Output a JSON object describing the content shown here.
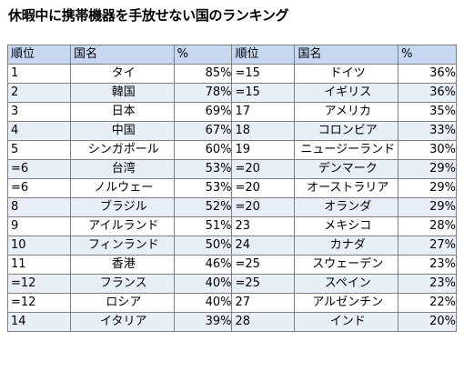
{
  "title": "休暇中に携帯機器を手放せない国のランキング",
  "headers": {
    "rank": "順位",
    "country": "国名",
    "percent": "%"
  },
  "rows": [
    {
      "left": {
        "rank": "1",
        "country": "タイ",
        "percent": "85%"
      },
      "right": {
        "rank": "=15",
        "country": "ドイツ",
        "percent": "36%"
      }
    },
    {
      "left": {
        "rank": "2",
        "country": "韓国",
        "percent": "78%"
      },
      "right": {
        "rank": "=15",
        "country": "イギリス",
        "percent": "36%"
      }
    },
    {
      "left": {
        "rank": "3",
        "country": "日本",
        "percent": "69%"
      },
      "right": {
        "rank": "17",
        "country": "アメリカ",
        "percent": "35%"
      }
    },
    {
      "left": {
        "rank": "4",
        "country": "中国",
        "percent": "67%"
      },
      "right": {
        "rank": "18",
        "country": "コロンビア",
        "percent": "33%"
      }
    },
    {
      "left": {
        "rank": "5",
        "country": "シンガポール",
        "percent": "60%"
      },
      "right": {
        "rank": "19",
        "country": "ニュージーランド",
        "percent": "30%"
      }
    },
    {
      "left": {
        "rank": "=6",
        "country": "台湾",
        "percent": "53%"
      },
      "right": {
        "rank": "=20",
        "country": "デンマーク",
        "percent": "29%"
      }
    },
    {
      "left": {
        "rank": "=6",
        "country": "ノルウェー",
        "percent": "53%"
      },
      "right": {
        "rank": "=20",
        "country": "オーストラリア",
        "percent": "29%"
      }
    },
    {
      "left": {
        "rank": "8",
        "country": "ブラジル",
        "percent": "52%"
      },
      "right": {
        "rank": "=20",
        "country": "オランダ",
        "percent": "29%"
      }
    },
    {
      "left": {
        "rank": "9",
        "country": "アイルランド",
        "percent": "51%"
      },
      "right": {
        "rank": "23",
        "country": "メキシコ",
        "percent": "28%"
      }
    },
    {
      "left": {
        "rank": "10",
        "country": "フィンランド",
        "percent": "50%"
      },
      "right": {
        "rank": "24",
        "country": "カナダ",
        "percent": "27%"
      }
    },
    {
      "left": {
        "rank": "11",
        "country": "香港",
        "percent": "46%"
      },
      "right": {
        "rank": "=25",
        "country": "スウェーデン",
        "percent": "23%"
      }
    },
    {
      "left": {
        "rank": "=12",
        "country": "フランス",
        "percent": "40%"
      },
      "right": {
        "rank": "=25",
        "country": "スペイン",
        "percent": "23%"
      }
    },
    {
      "left": {
        "rank": "=12",
        "country": "ロシア",
        "percent": "40%"
      },
      "right": {
        "rank": "27",
        "country": "アルゼンチン",
        "percent": "22%"
      }
    },
    {
      "left": {
        "rank": "14",
        "country": "イタリア",
        "percent": "39%"
      },
      "right": {
        "rank": "28",
        "country": "インド",
        "percent": "20%"
      }
    }
  ],
  "colors": {
    "header_bg": "#c6d9f0",
    "stripe_bg": "#e9eff8",
    "border": "#7f7f7f"
  }
}
